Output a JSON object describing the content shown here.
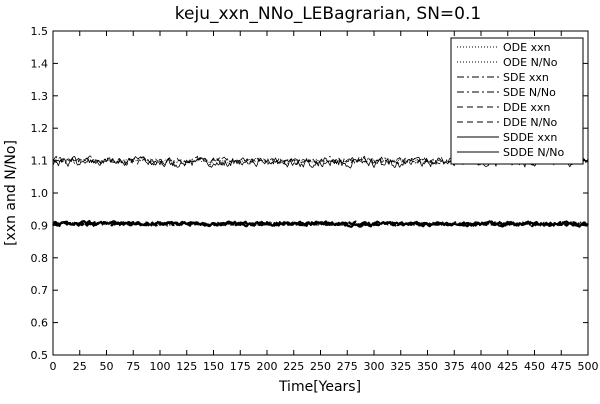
{
  "chart_data": {
    "type": "line",
    "title": "keju_xxn_NNo_LEBagrarian, SN=0.1",
    "xlabel": "Time[Years]",
    "ylabel": "[xxn and N/No]",
    "xlim": [
      0,
      500
    ],
    "ylim": [
      0.5,
      1.5
    ],
    "xticks": [
      0,
      25,
      50,
      75,
      100,
      125,
      150,
      175,
      200,
      225,
      250,
      275,
      300,
      325,
      350,
      375,
      400,
      425,
      450,
      475,
      500
    ],
    "yticks": [
      0.5,
      0.6,
      0.7,
      0.8,
      0.9,
      1.0,
      1.1,
      1.2,
      1.3,
      1.4,
      1.5
    ],
    "ytick_labels": [
      "0.5",
      "0.6",
      "0.7",
      "0.8",
      "0.9",
      "1.0",
      "1.1",
      "1.2",
      "1.3",
      "1.4",
      "1.5"
    ],
    "grid": false,
    "legend_position": "top-right",
    "line_color": "#000000",
    "series": [
      {
        "name": "ODE xxn",
        "style": "dotted",
        "level": 1.1,
        "noise": 0.004
      },
      {
        "name": "ODE N/No",
        "style": "dotted",
        "level": 0.905,
        "noise": 0.003
      },
      {
        "name": "SDE xxn",
        "style": "dashdot",
        "level": 1.1,
        "noise": 0.009
      },
      {
        "name": "SDE N/No",
        "style": "dashdot",
        "level": 0.905,
        "noise": 0.004
      },
      {
        "name": "DDE xxn",
        "style": "dashed",
        "level": 1.1,
        "noise": 0.007
      },
      {
        "name": "DDE N/No",
        "style": "dashed",
        "level": 0.905,
        "noise": 0.004
      },
      {
        "name": "SDDE xxn",
        "style": "solid",
        "level": 1.095,
        "noise": 0.011
      },
      {
        "name": "SDDE N/No",
        "style": "solid",
        "level": 0.905,
        "noise": 0.005
      }
    ]
  }
}
